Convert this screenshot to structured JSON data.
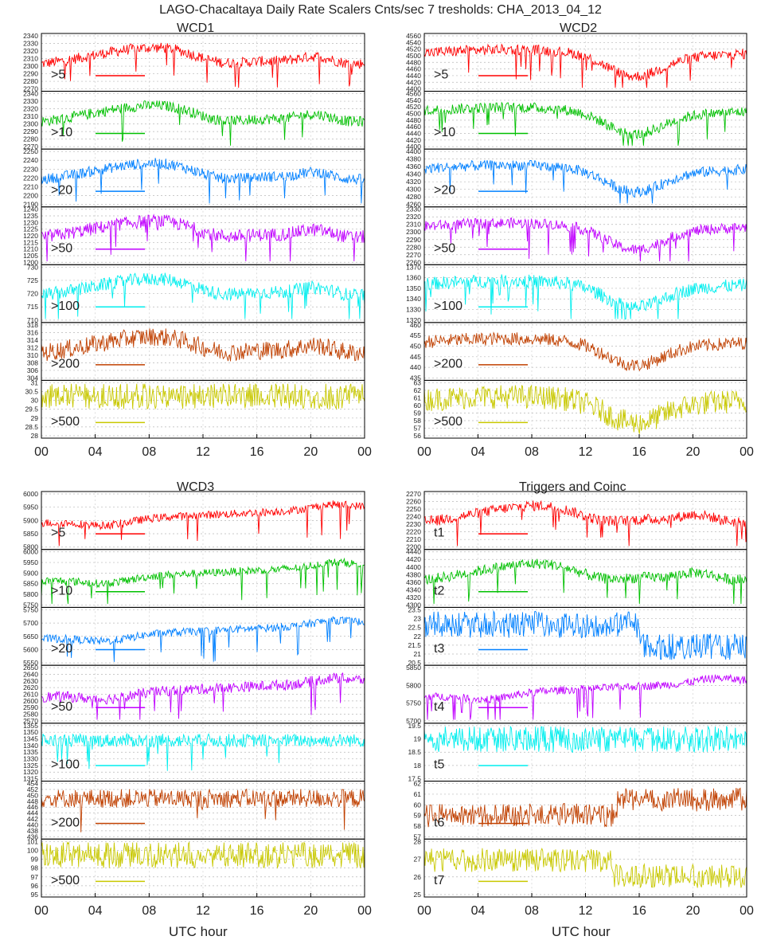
{
  "title": "LAGO-Chacaltaya Daily Rate Scalers Cnts/sec 7 tresholds:  CHA_2013_04_12",
  "xlabel": "UTC hour",
  "xticks": [
    "00",
    "04",
    "08",
    "12",
    "16",
    "20",
    "00"
  ],
  "colors": [
    "#ff0000",
    "#00c000",
    "#0080ff",
    "#c000ff",
    "#00eeee",
    "#c04000",
    "#c8c800"
  ],
  "chart_data": [
    {
      "type": "line",
      "title": "WCD1",
      "xlabel": "",
      "x_range_hours": [
        0,
        24
      ],
      "series": [
        {
          "name": ">5",
          "ylim": [
            2270,
            2340
          ],
          "yticks": [
            "2340",
            "2330",
            "2320",
            "2310",
            "2300",
            "2290",
            "2280",
            "2270"
          ],
          "trend": "seasonal",
          "noise": 0.2,
          "spikes": "down"
        },
        {
          "name": ">10",
          "ylim": [
            2270,
            2340
          ],
          "yticks": [
            "2340",
            "2330",
            "2320",
            "2310",
            "2300",
            "2290",
            "2280",
            "2270"
          ],
          "trend": "seasonal",
          "noise": 0.2,
          "spikes": "down"
        },
        {
          "name": ">20",
          "ylim": [
            2190,
            2250
          ],
          "yticks": [
            "2250",
            "2240",
            "2230",
            "2220",
            "2210",
            "2200",
            "2190"
          ],
          "trend": "seasonal",
          "noise": 0.2,
          "spikes": "down"
        },
        {
          "name": ">50",
          "ylim": [
            1200,
            1240
          ],
          "yticks": [
            "1240",
            "1235",
            "1230",
            "1225",
            "1220",
            "1215",
            "1210",
            "1205",
            "1200"
          ],
          "trend": "seasonal",
          "noise": 0.25,
          "spikes": "down"
        },
        {
          "name": ">100",
          "ylim": [
            710,
            730
          ],
          "yticks": [
            "730",
            "725",
            "720",
            "715",
            "710"
          ],
          "trend": "seasonal",
          "noise": 0.25,
          "spikes": "down"
        },
        {
          "name": ">200",
          "ylim": [
            304,
            318
          ],
          "yticks": [
            "318",
            "316",
            "314",
            "312",
            "310",
            "308",
            "306",
            "304"
          ],
          "trend": "seasonal",
          "noise": 0.35,
          "spikes": "none"
        },
        {
          "name": ">500",
          "ylim": [
            28,
            31
          ],
          "yticks": [
            "31",
            "30.5",
            "30",
            "29.5",
            "29",
            "28.5",
            "28"
          ],
          "trend": "discrete",
          "noise": 0.5,
          "spikes": "none"
        }
      ]
    },
    {
      "type": "line",
      "title": "WCD2",
      "xlabel": "",
      "x_range_hours": [
        0,
        24
      ],
      "series": [
        {
          "name": ">5",
          "ylim": [
            4400,
            4560
          ],
          "yticks": [
            "4560",
            "4540",
            "4520",
            "4500",
            "4480",
            "4460",
            "4440",
            "4420",
            "4400"
          ],
          "trend": "dip16",
          "noise": 0.2,
          "spikes": "down"
        },
        {
          "name": ">10",
          "ylim": [
            4400,
            4560
          ],
          "yticks": [
            "4560",
            "4540",
            "4520",
            "4500",
            "4480",
            "4460",
            "4440",
            "4420",
            "4400"
          ],
          "trend": "dip16",
          "noise": 0.2,
          "spikes": "down"
        },
        {
          "name": ">20",
          "ylim": [
            4260,
            4400
          ],
          "yticks": [
            "4400",
            "4380",
            "4360",
            "4340",
            "4320",
            "4300",
            "4280",
            "4260"
          ],
          "trend": "dip16",
          "noise": 0.2,
          "spikes": "down"
        },
        {
          "name": ">50",
          "ylim": [
            2260,
            2330
          ],
          "yticks": [
            "2330",
            "2320",
            "2310",
            "2300",
            "2290",
            "2280",
            "2270",
            "2260"
          ],
          "trend": "dip16",
          "noise": 0.2,
          "spikes": "down"
        },
        {
          "name": ">100",
          "ylim": [
            1320,
            1370
          ],
          "yticks": [
            "1370",
            "1360",
            "1350",
            "1340",
            "1330",
            "1320"
          ],
          "trend": "dip16",
          "noise": 0.25,
          "spikes": "down"
        },
        {
          "name": ">200",
          "ylim": [
            435,
            460
          ],
          "yticks": [
            "460",
            "455",
            "450",
            "445",
            "440",
            "435"
          ],
          "trend": "dip16",
          "noise": 0.25,
          "spikes": "none"
        },
        {
          "name": ">500",
          "ylim": [
            56,
            63
          ],
          "yticks": [
            "63",
            "62",
            "61",
            "60",
            "59",
            "58",
            "57",
            "56"
          ],
          "trend": "dip16",
          "noise": 0.45,
          "spikes": "none"
        }
      ]
    },
    {
      "type": "line",
      "title": "WCD3",
      "xlabel": "UTC hour",
      "x_range_hours": [
        0,
        24
      ],
      "series": [
        {
          "name": ">5",
          "ylim": [
            5800,
            6000
          ],
          "yticks": [
            "6000",
            "5950",
            "5900",
            "5850",
            "5800"
          ],
          "trend": "rising",
          "noise": 0.15,
          "spikes": "down"
        },
        {
          "name": ">10",
          "ylim": [
            5750,
            6000
          ],
          "yticks": [
            "6000",
            "5950",
            "5900",
            "5850",
            "5800",
            "5750"
          ],
          "trend": "rising",
          "noise": 0.15,
          "spikes": "down"
        },
        {
          "name": ">20",
          "ylim": [
            5550,
            5750
          ],
          "yticks": [
            "5750",
            "5700",
            "5650",
            "5600",
            "5550"
          ],
          "trend": "rising",
          "noise": 0.15,
          "spikes": "down"
        },
        {
          "name": ">50",
          "ylim": [
            2570,
            2650
          ],
          "yticks": [
            "2650",
            "2640",
            "2630",
            "2620",
            "2610",
            "2600",
            "2590",
            "2580",
            "2570"
          ],
          "trend": "rising",
          "noise": 0.2,
          "spikes": "down"
        },
        {
          "name": ">100",
          "ylim": [
            1315,
            1355
          ],
          "yticks": [
            "1355",
            "1350",
            "1345",
            "1340",
            "1335",
            "1330",
            "1325",
            "1320",
            "1315"
          ],
          "trend": "flat",
          "noise": 0.25,
          "spikes": "down"
        },
        {
          "name": ">200",
          "ylim": [
            436,
            454
          ],
          "yticks": [
            "454",
            "452",
            "450",
            "448",
            "446",
            "444",
            "442",
            "440",
            "438",
            "436"
          ],
          "trend": "flat",
          "noise": 0.35,
          "spikes": "down"
        },
        {
          "name": ">500",
          "ylim": [
            95,
            101
          ],
          "yticks": [
            "101",
            "100",
            "99",
            "98",
            "97",
            "96",
            "95"
          ],
          "trend": "discrete",
          "noise": 0.5,
          "spikes": "none"
        }
      ]
    },
    {
      "type": "line",
      "title": "Triggers and Coinc",
      "xlabel": "UTC hour",
      "x_range_hours": [
        0,
        24
      ],
      "series": [
        {
          "name": "t1",
          "ylim": [
            2200,
            2270
          ],
          "yticks": [
            "2270",
            "2260",
            "2250",
            "2240",
            "2230",
            "2220",
            "2210",
            "2200"
          ],
          "trend": "seasonal",
          "noise": 0.2,
          "spikes": "down"
        },
        {
          "name": "t2",
          "ylim": [
            4300,
            4440
          ],
          "yticks": [
            "4440",
            "4420",
            "4400",
            "4380",
            "4360",
            "4340",
            "4320",
            "4300"
          ],
          "trend": "seasonal",
          "noise": 0.2,
          "spikes": "down"
        },
        {
          "name": "t3",
          "ylim": [
            20.5,
            23.5
          ],
          "yticks": [
            "23.5",
            "23",
            "22.5",
            "22",
            "21.5",
            "21",
            "20.5"
          ],
          "trend": "step16",
          "noise": 0.5,
          "spikes": "none"
        },
        {
          "name": "t4",
          "ylim": [
            5700,
            5850
          ],
          "yticks": [
            "5850",
            "5800",
            "5750",
            "5700"
          ],
          "trend": "rising",
          "noise": 0.15,
          "spikes": "down"
        },
        {
          "name": "t5",
          "ylim": [
            17.5,
            19.5
          ],
          "yticks": [
            "19.5",
            "19",
            "18.5",
            "18",
            "17.5"
          ],
          "trend": "discrete",
          "noise": 0.5,
          "spikes": "none"
        },
        {
          "name": "t6",
          "ylim": [
            57,
            62
          ],
          "yticks": [
            "62",
            "61",
            "60",
            "59",
            "58",
            "57"
          ],
          "trend": "step14",
          "noise": 0.45,
          "spikes": "none"
        },
        {
          "name": "t7",
          "ylim": [
            25,
            28
          ],
          "yticks": [
            "28",
            "27",
            "26",
            "25"
          ],
          "trend": "step14down",
          "noise": 0.45,
          "spikes": "none"
        }
      ]
    }
  ]
}
